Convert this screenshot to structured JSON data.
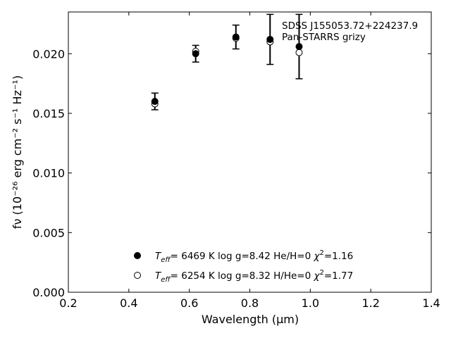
{
  "chart_data": {
    "type": "scatter",
    "xlabel": "Wavelength (μm)",
    "ylabel": "fν (10⁻²⁶ erg cm⁻² s⁻¹ Hz⁻¹)",
    "xlim": [
      0.2,
      1.4
    ],
    "ylim": [
      0.0,
      0.0235
    ],
    "xticks": [
      0.2,
      0.4,
      0.6,
      0.8,
      1.0,
      1.2,
      1.4
    ],
    "xtick_labels": [
      "0.2",
      "0.4",
      "0.6",
      "0.8",
      "1.0",
      "1.2",
      "1.4"
    ],
    "yticks": [
      0.0,
      0.005,
      0.01,
      0.015,
      0.02
    ],
    "ytick_labels": [
      "0.000",
      "0.005",
      "0.010",
      "0.015",
      "0.020"
    ],
    "grid": false,
    "annotation": [
      "SDSS J155053.72+224237.9",
      "Pan-STARRS grizy"
    ],
    "observed": {
      "x": [
        0.486,
        0.621,
        0.754,
        0.867,
        0.963
      ],
      "y": [
        0.016,
        0.02,
        0.0214,
        0.0212,
        0.0206
      ],
      "yerr": [
        0.0007,
        0.0007,
        0.001,
        0.0021,
        0.0027
      ]
    },
    "series": [
      {
        "name": "Teff=  6469 K  log g=8.42  He/H=0  χ²=1.16",
        "marker": "filled-circle",
        "x": [
          0.486,
          0.621,
          0.754,
          0.867,
          0.963
        ],
        "y": [
          0.016,
          0.02,
          0.0214,
          0.0212,
          0.0206
        ]
      },
      {
        "name": "Teff=  6254 K  log g=8.32  H/He=0  χ²=1.77",
        "marker": "open-circle",
        "x": [
          0.486,
          0.621,
          0.754,
          0.867,
          0.963
        ],
        "y": [
          0.0158,
          0.0202,
          0.0213,
          0.021,
          0.0201
        ]
      }
    ],
    "legend": [
      {
        "teff_label": "T",
        "teff_sub": "eff",
        "eq": "=  6469 K  log g=8.42  He/H=0  ",
        "chi": "χ",
        "chi_sup": "2",
        "chi_val": "=1.16"
      },
      {
        "teff_label": "T",
        "teff_sub": "eff",
        "eq": "=  6254 K  log g=8.32  H/He=0  ",
        "chi": "χ",
        "chi_sup": "2",
        "chi_val": "=1.77"
      }
    ]
  }
}
